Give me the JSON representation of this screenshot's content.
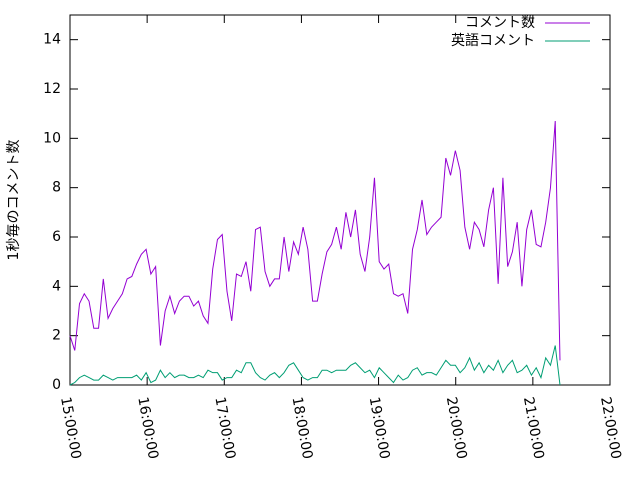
{
  "chart_data": {
    "type": "line",
    "y_label": "1秒毎のコメント数",
    "x": [
      900,
      903.7,
      907.4,
      911.1,
      914.8,
      918.5,
      922.2,
      925.9,
      929.6,
      933.3,
      937,
      940.7,
      944.4,
      948.1,
      951.8,
      955.5,
      959.2,
      962.9,
      966.6,
      970.3,
      974,
      977.7,
      981.4,
      985.1,
      988.8,
      992.5,
      996.2,
      999.9,
      1003.6,
      1007.3,
      1011,
      1014.7,
      1018.4,
      1022.1,
      1025.8,
      1029.5,
      1033.2,
      1036.9,
      1040.6,
      1044.3,
      1048,
      1051.7,
      1055.4,
      1059.1,
      1062.8,
      1066.5,
      1070.2,
      1073.9,
      1077.6,
      1081.3,
      1085,
      1088.7,
      1092.4,
      1096.1,
      1099.8,
      1103.5,
      1107.2,
      1110.9,
      1114.6,
      1118.3,
      1122,
      1125.7,
      1129.4,
      1133.1,
      1136.8,
      1140.5,
      1144.2,
      1147.9,
      1151.6,
      1155.3,
      1159,
      1162.7,
      1166.4,
      1170.1,
      1173.8,
      1177.5,
      1181.2,
      1184.9,
      1188.6,
      1192.3,
      1196,
      1199.7,
      1203.4,
      1207.1,
      1210.8,
      1214.5,
      1218.2,
      1221.9,
      1225.6,
      1229.3,
      1233,
      1236.7,
      1240.4,
      1244.1,
      1247.8,
      1251.5,
      1255.2,
      1258.9,
      1262.6,
      1266.3,
      1270,
      1273.7,
      1277.4,
      1281.1
    ],
    "series": [
      {
        "name": "コメント数",
        "color": "#9400d3",
        "values": [
          2.0,
          1.4,
          3.3,
          3.7,
          3.4,
          2.3,
          2.3,
          4.3,
          2.7,
          3.1,
          3.4,
          3.7,
          4.3,
          4.4,
          4.9,
          5.3,
          5.5,
          4.5,
          4.8,
          1.6,
          3.0,
          3.6,
          2.9,
          3.4,
          3.6,
          3.6,
          3.2,
          3.4,
          2.8,
          2.5,
          4.7,
          5.9,
          6.1,
          3.8,
          2.6,
          4.5,
          4.4,
          5.0,
          3.8,
          6.3,
          6.4,
          4.6,
          4.0,
          4.3,
          4.3,
          6.0,
          4.6,
          5.8,
          5.3,
          6.4,
          5.5,
          3.4,
          3.4,
          4.5,
          5.4,
          5.7,
          6.4,
          5.5,
          7.0,
          6.0,
          7.1,
          5.3,
          4.6,
          6.0,
          8.4,
          5.0,
          4.7,
          4.9,
          3.7,
          3.6,
          3.7,
          2.9,
          5.5,
          6.3,
          7.5,
          6.1,
          6.4,
          6.6,
          6.8,
          9.2,
          8.5,
          9.5,
          8.7,
          6.4,
          5.5,
          6.6,
          6.3,
          5.6,
          7.1,
          8.0,
          4.1,
          8.4,
          4.8,
          5.4,
          6.6,
          4.0,
          6.3,
          7.1,
          5.7,
          5.6,
          6.6,
          8.0,
          10.7,
          1.0
        ]
      },
      {
        "name": "英語コメント",
        "color": "#009e73",
        "values": [
          0,
          0.1,
          0.3,
          0.4,
          0.3,
          0.2,
          0.2,
          0.4,
          0.3,
          0.2,
          0.3,
          0.3,
          0.3,
          0.3,
          0.4,
          0.2,
          0.5,
          0.1,
          0.2,
          0.6,
          0.3,
          0.5,
          0.3,
          0.4,
          0.4,
          0.3,
          0.3,
          0.4,
          0.3,
          0.6,
          0.5,
          0.5,
          0.2,
          0.3,
          0.3,
          0.6,
          0.5,
          0.9,
          0.9,
          0.5,
          0.3,
          0.2,
          0.4,
          0.5,
          0.3,
          0.5,
          0.8,
          0.9,
          0.6,
          0.3,
          0.2,
          0.3,
          0.3,
          0.6,
          0.6,
          0.5,
          0.6,
          0.6,
          0.6,
          0.8,
          0.9,
          0.7,
          0.5,
          0.6,
          0.3,
          0.7,
          0.5,
          0.3,
          0.1,
          0.4,
          0.2,
          0.3,
          0.6,
          0.7,
          0.4,
          0.5,
          0.5,
          0.4,
          0.7,
          1.0,
          0.8,
          0.8,
          0.5,
          0.7,
          1.1,
          0.6,
          0.9,
          0.5,
          0.8,
          0.6,
          1.0,
          0.5,
          0.8,
          1.0,
          0.5,
          0.6,
          0.8,
          0.4,
          0.7,
          0.3,
          1.1,
          0.8,
          1.6,
          0
        ]
      }
    ],
    "xlim": [
      900,
      1320
    ],
    "xticks": [
      {
        "value": 900,
        "label": "15:00:00"
      },
      {
        "value": 960,
        "label": "16:00:00"
      },
      {
        "value": 1020,
        "label": "17:00:00"
      },
      {
        "value": 1080,
        "label": "18:00:00"
      },
      {
        "value": 1140,
        "label": "19:00:00"
      },
      {
        "value": 1200,
        "label": "20:00:00"
      },
      {
        "value": 1260,
        "label": "21:00:00"
      },
      {
        "value": 1320,
        "label": "22:00:00"
      }
    ],
    "ylim": [
      0,
      15
    ],
    "yticks": [
      0,
      2,
      4,
      6,
      8,
      10,
      12,
      14
    ],
    "legend": "top-right"
  }
}
